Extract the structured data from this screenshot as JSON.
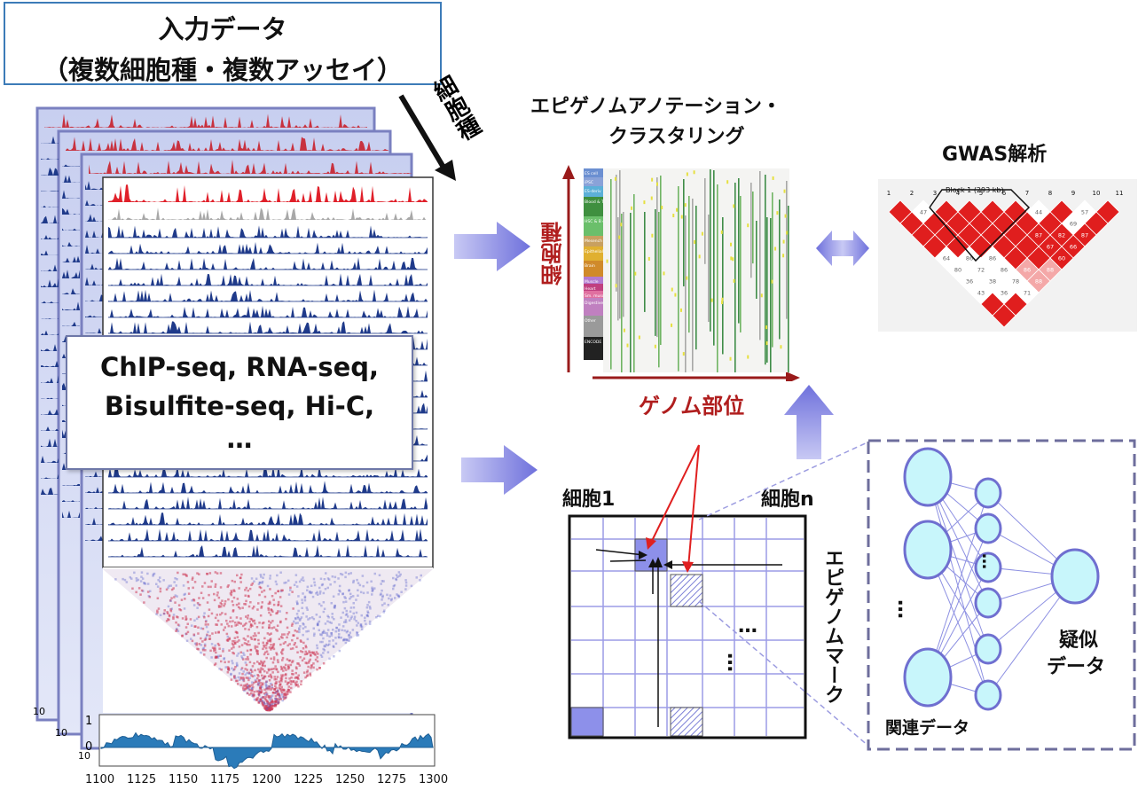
{
  "input": {
    "title_line1": "入力データ",
    "title_line2": "（複数細胞種・複数アッセイ）",
    "cell_type_arrow_label": "細胞種",
    "assay_line1": "ChIP-seq, RNA-seq,",
    "assay_line2": "Bisulfite-seq, Hi-C,",
    "assay_line3": "…",
    "axis_ticks": [
      "1100",
      "1125",
      "1150",
      "1175",
      "1200",
      "1225",
      "1250",
      "1275",
      "1300"
    ],
    "y_ticks": [
      "1",
      "0"
    ],
    "back_ticks": [
      "10",
      "10",
      "10"
    ]
  },
  "annotation": {
    "title_line1": "エピゲノムアノテーション・",
    "title_line2": "クラスタリング",
    "y_label": "細胞種",
    "x_label": "ゲノム部位",
    "legend": [
      "ES cell",
      "iPSC",
      "ES-deriv",
      "Blood & T cell",
      "HSC & B cell",
      "Mesench",
      "Epithelial",
      "Brain",
      "Muscle",
      "Heart",
      "Sm. musc",
      "Digestive",
      "Other",
      "ENCODE 2012"
    ]
  },
  "gwas": {
    "title": "GWAS解析",
    "block_label": "Block 1 (293 kb)",
    "top_numbers": [
      "1",
      "2",
      "3",
      "4",
      "5",
      "6",
      "7",
      "8",
      "9",
      "10",
      "11"
    ],
    "cell_numbers": [
      "47",
      "44",
      "57",
      "69",
      "87",
      "82",
      "87",
      "67",
      "66",
      "64",
      "86",
      "86",
      "60",
      "80",
      "72",
      "86",
      "86",
      "88",
      "36",
      "38",
      "78",
      "88",
      "43",
      "36",
      "71",
      "48",
      "84"
    ]
  },
  "matrix": {
    "cell_first": "細胞1",
    "cell_last": "細胞n",
    "dots_h": "…",
    "dots_v": "…",
    "mark_label": "エピゲノムマーク"
  },
  "network": {
    "dots": "…",
    "output_line1": "疑似",
    "output_line2": "データ",
    "input_label": "関連データ"
  },
  "colors": {
    "accent": "#3c7bb8",
    "red_label": "#b01e1e",
    "arrow": "#7d7fe0",
    "track": "#1f3a8a",
    "ld_red": "#e02020"
  }
}
